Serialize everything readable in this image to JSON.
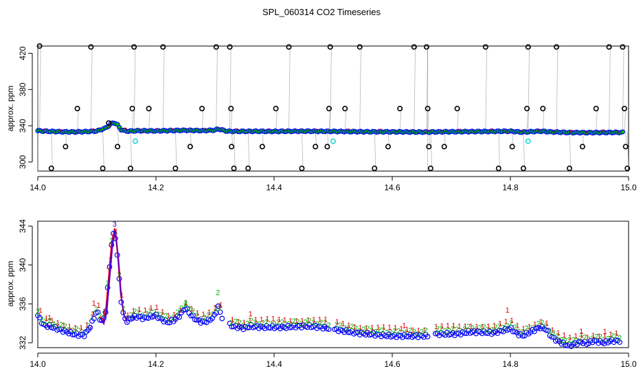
{
  "chart_data": [
    {
      "type": "line",
      "title": "SPL_060314  CO2 Timeseries",
      "xlabel": "",
      "ylabel": "approx. ppm",
      "xlim": [
        14.0,
        15.0
      ],
      "ylim": [
        290,
        428
      ],
      "x_ticks": [
        14.0,
        14.2,
        14.4,
        14.6,
        14.8,
        15.0
      ],
      "x_tick_labels": [
        "14.0",
        "14.2",
        "14.4",
        "14.6",
        "14.8",
        "15.0"
      ],
      "y_ticks": [
        300,
        340,
        380,
        420
      ],
      "y_tick_labels": [
        "300",
        "340",
        "380",
        "420"
      ],
      "colors": {
        "raw": "#000000",
        "line": "#888888",
        "clean": "#0000ff",
        "fill": "#00c000",
        "flag": "#ff0000",
        "cyan": "#00d0d0"
      },
      "baseline_points": [
        [
          14.0,
          334.5
        ],
        [
          14.02,
          333.8
        ],
        [
          14.04,
          333.4
        ],
        [
          14.06,
          333.2
        ],
        [
          14.08,
          333.5
        ],
        [
          14.1,
          334.2
        ],
        [
          14.115,
          337.5
        ],
        [
          14.125,
          342.5
        ],
        [
          14.13,
          343.5
        ],
        [
          14.135,
          341.0
        ],
        [
          14.14,
          336.0
        ],
        [
          14.15,
          334.0
        ],
        [
          14.17,
          334.5
        ],
        [
          14.2,
          334.3
        ],
        [
          14.25,
          335.0
        ],
        [
          14.28,
          334.6
        ],
        [
          14.3,
          335.2
        ],
        [
          14.305,
          336.5
        ],
        [
          14.32,
          334.0
        ],
        [
          14.34,
          333.8
        ],
        [
          14.36,
          333.9
        ],
        [
          14.4,
          333.8
        ],
        [
          14.45,
          334.0
        ],
        [
          14.5,
          333.8
        ],
        [
          14.55,
          333.4
        ],
        [
          14.6,
          333.3
        ],
        [
          14.64,
          333.1
        ],
        [
          14.66,
          333.0
        ],
        [
          14.68,
          333.3
        ],
        [
          14.72,
          333.5
        ],
        [
          14.76,
          333.7
        ],
        [
          14.8,
          334.0
        ],
        [
          14.82,
          332.9
        ],
        [
          14.85,
          334.0
        ],
        [
          14.87,
          333.2
        ],
        [
          14.9,
          332.5
        ],
        [
          14.93,
          332.4
        ],
        [
          14.96,
          332.6
        ],
        [
          14.99,
          332.7
        ]
      ],
      "outliers": [
        [
          14.003,
          428
        ],
        [
          14.023,
          293
        ],
        [
          14.047,
          317
        ],
        [
          14.067,
          359
        ],
        [
          14.09,
          427
        ],
        [
          14.11,
          293
        ],
        [
          14.12,
          343
        ],
        [
          14.135,
          317
        ],
        [
          14.157,
          293
        ],
        [
          14.16,
          359
        ],
        [
          14.163,
          427
        ],
        [
          14.188,
          359
        ],
        [
          14.212,
          427
        ],
        [
          14.233,
          293
        ],
        [
          14.258,
          317
        ],
        [
          14.278,
          359
        ],
        [
          14.302,
          427
        ],
        [
          14.325,
          427
        ],
        [
          14.327,
          359
        ],
        [
          14.328,
          317
        ],
        [
          14.332,
          293
        ],
        [
          14.356,
          293
        ],
        [
          14.38,
          317
        ],
        [
          14.403,
          359
        ],
        [
          14.425,
          427
        ],
        [
          14.447,
          293
        ],
        [
          14.47,
          317
        ],
        [
          14.49,
          317
        ],
        [
          14.493,
          359
        ],
        [
          14.495,
          427
        ],
        [
          14.52,
          359
        ],
        [
          14.545,
          427
        ],
        [
          14.57,
          293
        ],
        [
          14.593,
          317
        ],
        [
          14.613,
          359
        ],
        [
          14.637,
          427
        ],
        [
          14.658,
          427
        ],
        [
          14.66,
          359
        ],
        [
          14.662,
          317
        ],
        [
          14.665,
          293
        ],
        [
          14.688,
          317
        ],
        [
          14.71,
          359
        ],
        [
          14.758,
          427
        ],
        [
          14.78,
          293
        ],
        [
          14.803,
          317
        ],
        [
          14.822,
          293
        ],
        [
          14.828,
          359
        ],
        [
          14.83,
          427
        ],
        [
          14.855,
          359
        ],
        [
          14.878,
          427
        ],
        [
          14.9,
          293
        ],
        [
          14.922,
          317
        ],
        [
          14.945,
          359
        ],
        [
          14.967,
          427
        ],
        [
          14.99,
          427
        ],
        [
          14.993,
          359
        ],
        [
          14.995,
          317
        ],
        [
          14.998,
          293
        ]
      ],
      "cyan_points": [
        [
          14.165,
          323
        ],
        [
          14.5,
          323
        ],
        [
          14.83,
          323
        ]
      ]
    },
    {
      "type": "scatter",
      "title": "",
      "xlabel": "",
      "ylabel": "approx. ppm",
      "xlim": [
        14.0,
        15.0
      ],
      "ylim": [
        331.5,
        344.5
      ],
      "x_ticks": [
        14.0,
        14.2,
        14.4,
        14.6,
        14.8,
        15.0
      ],
      "x_tick_labels": [
        "14.0",
        "14.2",
        "14.4",
        "14.6",
        "14.8",
        "15.0"
      ],
      "y_ticks": [
        332,
        336,
        340,
        344
      ],
      "y_tick_labels": [
        "332",
        "336",
        "340",
        "344"
      ],
      "series": [
        {
          "name": "1",
          "color": "#e00000"
        },
        {
          "name": "2",
          "color": "#00b000"
        },
        {
          "name": "3",
          "color": "#4000c0"
        },
        {
          "name": "0",
          "color": "#0000ff"
        }
      ],
      "series_points": [
        [
          14.0,
          335.0
        ],
        [
          14.01,
          334.0
        ],
        [
          14.02,
          333.9
        ],
        [
          14.03,
          333.7
        ],
        [
          14.04,
          333.5
        ],
        [
          14.05,
          333.3
        ],
        [
          14.06,
          333.1
        ],
        [
          14.07,
          333.0
        ],
        [
          14.08,
          333.0
        ],
        [
          14.09,
          334.0
        ],
        [
          14.1,
          335.5
        ],
        [
          14.105,
          334.7
        ],
        [
          14.11,
          334.3
        ],
        [
          14.115,
          335.5
        ],
        [
          14.12,
          339.0
        ],
        [
          14.125,
          342.5
        ],
        [
          14.13,
          343.8
        ],
        [
          14.135,
          341.0
        ],
        [
          14.14,
          337.0
        ],
        [
          14.145,
          335.0
        ],
        [
          14.15,
          334.4
        ],
        [
          14.16,
          334.8
        ],
        [
          14.17,
          334.9
        ],
        [
          14.18,
          334.7
        ],
        [
          14.19,
          334.9
        ],
        [
          14.2,
          335.0
        ],
        [
          14.21,
          334.6
        ],
        [
          14.22,
          334.3
        ],
        [
          14.23,
          334.5
        ],
        [
          14.24,
          335.0
        ],
        [
          14.25,
          335.8
        ],
        [
          14.26,
          335.0
        ],
        [
          14.27,
          334.5
        ],
        [
          14.28,
          334.3
        ],
        [
          14.29,
          334.5
        ],
        [
          14.3,
          335.0
        ],
        [
          14.305,
          336.0
        ],
        [
          14.31,
          335.0
        ],
        [
          14.32,
          334.2
        ],
        [
          14.33,
          333.9
        ],
        [
          14.34,
          333.8
        ],
        [
          14.35,
          333.7
        ],
        [
          14.36,
          333.9
        ],
        [
          14.38,
          333.8
        ],
        [
          14.4,
          333.8
        ],
        [
          14.42,
          333.8
        ],
        [
          14.44,
          333.9
        ],
        [
          14.46,
          333.9
        ],
        [
          14.48,
          333.8
        ],
        [
          14.5,
          333.6
        ],
        [
          14.52,
          333.4
        ],
        [
          14.54,
          333.2
        ],
        [
          14.56,
          333.1
        ],
        [
          14.58,
          333.0
        ],
        [
          14.6,
          332.9
        ],
        [
          14.62,
          332.9
        ],
        [
          14.64,
          332.9
        ],
        [
          14.66,
          332.9
        ],
        [
          14.67,
          333.1
        ],
        [
          14.69,
          333.1
        ],
        [
          14.71,
          333.1
        ],
        [
          14.73,
          333.3
        ],
        [
          14.75,
          333.3
        ],
        [
          14.77,
          333.2
        ],
        [
          14.79,
          333.5
        ],
        [
          14.8,
          333.7
        ],
        [
          14.81,
          333.2
        ],
        [
          14.82,
          332.9
        ],
        [
          14.83,
          333.2
        ],
        [
          14.84,
          333.5
        ],
        [
          14.85,
          333.8
        ],
        [
          14.86,
          333.6
        ],
        [
          14.87,
          332.8
        ],
        [
          14.88,
          332.4
        ],
        [
          14.89,
          332.1
        ],
        [
          14.9,
          331.9
        ],
        [
          14.91,
          332.1
        ],
        [
          14.92,
          332.3
        ],
        [
          14.93,
          332.1
        ],
        [
          14.94,
          332.4
        ],
        [
          14.95,
          332.3
        ],
        [
          14.96,
          332.2
        ],
        [
          14.97,
          332.4
        ],
        [
          14.98,
          332.4
        ]
      ],
      "top_labels": [
        [
          14.02,
          334.6,
          "1"
        ],
        [
          14.095,
          336.1,
          "1"
        ],
        [
          14.13,
          344.2,
          "3"
        ],
        [
          14.25,
          336.1,
          "2"
        ],
        [
          14.305,
          337.2,
          "2"
        ],
        [
          14.36,
          335.0,
          "1"
        ],
        [
          14.62,
          333.8,
          "1"
        ],
        [
          14.795,
          335.4,
          "1"
        ],
        [
          14.92,
          333.2,
          "1"
        ],
        [
          14.96,
          333.2,
          "1"
        ]
      ]
    }
  ]
}
